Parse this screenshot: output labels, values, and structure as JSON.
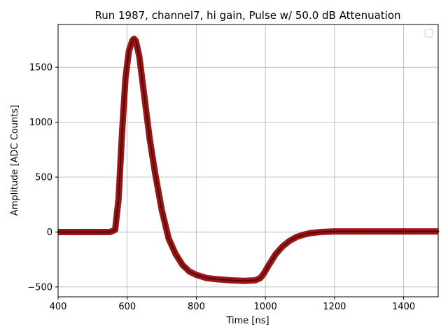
{
  "chart_data": {
    "type": "line",
    "title": "Run 1987, channel7, hi gain, Pulse w/ 50.0 dB Attenuation",
    "xlabel": "Time [ns]",
    "ylabel": "Amplitude [ADC Counts]",
    "xlim": [
      400,
      1500
    ],
    "ylim": [
      -590,
      1890
    ],
    "xticks": [
      400,
      600,
      800,
      1000,
      1200,
      1400
    ],
    "yticks": [
      -500,
      0,
      500,
      1000,
      1500
    ],
    "xtick_labels": [
      "400",
      "600",
      "800",
      "1000",
      "1200",
      "1400"
    ],
    "ytick_labels": [
      "−500",
      "0",
      "500",
      "1000",
      "1500"
    ],
    "grid": true,
    "legend": "top-right (empty)",
    "series": [
      {
        "color": "#8b0000",
        "x": [
          400,
          450,
          500,
          550,
          565,
          575,
          585,
          595,
          605,
          615,
          620,
          625,
          635,
          645,
          655,
          665,
          680,
          700,
          720,
          740,
          760,
          780,
          800,
          830,
          860,
          900,
          940,
          970,
          985,
          995,
          1010,
          1030,
          1050,
          1070,
          1090,
          1110,
          1130,
          1160,
          1200,
          1250,
          1300,
          1350,
          1400,
          1450,
          1500
        ],
        "y": [
          0,
          0,
          0,
          0,
          20,
          300,
          900,
          1400,
          1650,
          1745,
          1760,
          1740,
          1600,
          1350,
          1100,
          850,
          550,
          200,
          -60,
          -200,
          -300,
          -360,
          -390,
          -420,
          -430,
          -440,
          -445,
          -440,
          -420,
          -380,
          -300,
          -200,
          -130,
          -80,
          -45,
          -25,
          -10,
          0,
          5,
          5,
          5,
          5,
          5,
          5,
          5
        ]
      }
    ]
  }
}
